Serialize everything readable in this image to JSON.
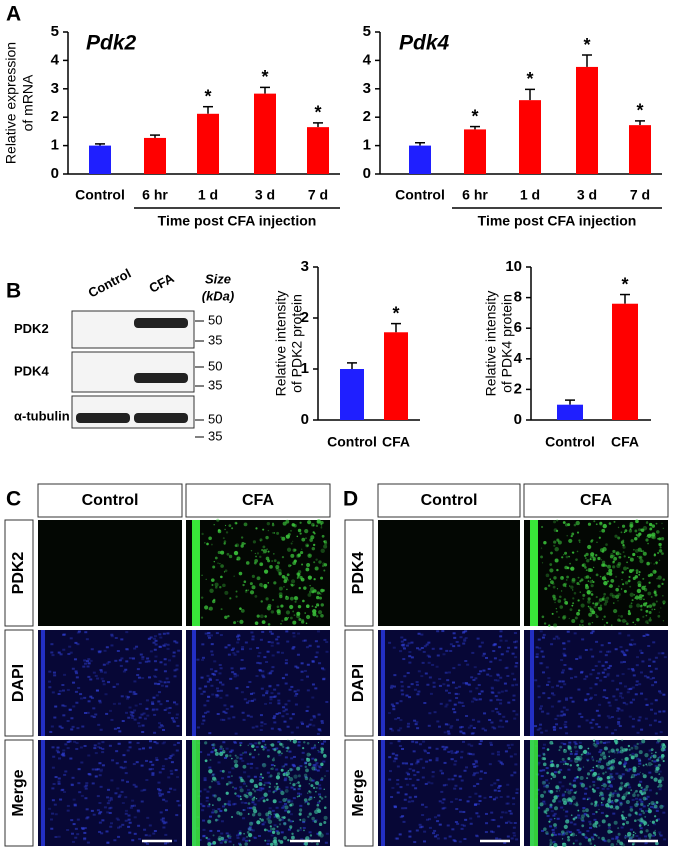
{
  "panel_labels": [
    "A",
    "B",
    "C",
    "D"
  ],
  "chart_data": [
    {
      "type": "bar",
      "title": "Pdk2",
      "ylabel": [
        "Relative expression",
        "of mRNA"
      ],
      "categories": [
        "Control",
        "6 hr",
        "1 d",
        "3 d",
        "7 d"
      ],
      "group_label": "Time post CFA injection",
      "values": [
        1.0,
        1.27,
        2.12,
        2.83,
        1.65
      ],
      "errors": [
        0.06,
        0.1,
        0.25,
        0.22,
        0.15
      ],
      "colors": [
        "#1f1fff",
        "#ff0000",
        "#ff0000",
        "#ff0000",
        "#ff0000"
      ],
      "significance": [
        null,
        null,
        "*",
        "*",
        "*"
      ],
      "ylim": [
        0,
        5
      ],
      "yticks": [
        0,
        1,
        2,
        3,
        4,
        5
      ]
    },
    {
      "type": "bar",
      "title": "Pdk4",
      "categories": [
        "Control",
        "6 hr",
        "1 d",
        "3 d",
        "7 d"
      ],
      "group_label": "Time post CFA injection",
      "values": [
        1.0,
        1.57,
        2.6,
        3.77,
        1.72
      ],
      "errors": [
        0.1,
        0.1,
        0.38,
        0.42,
        0.15
      ],
      "colors": [
        "#1f1fff",
        "#ff0000",
        "#ff0000",
        "#ff0000",
        "#ff0000"
      ],
      "significance": [
        null,
        "*",
        "*",
        "*",
        "*"
      ],
      "ylim": [
        0,
        5
      ],
      "yticks": [
        0,
        1,
        2,
        3,
        4,
        5
      ]
    },
    {
      "type": "bar",
      "ylabel": [
        "Relative intensity",
        "of PDK2 protein"
      ],
      "categories": [
        "Control",
        "CFA"
      ],
      "values": [
        1.0,
        1.72
      ],
      "errors": [
        0.12,
        0.17
      ],
      "colors": [
        "#1f1fff",
        "#ff0000"
      ],
      "significance": [
        null,
        "*"
      ],
      "ylim": [
        0,
        3
      ],
      "yticks": [
        0,
        1,
        2,
        3
      ]
    },
    {
      "type": "bar",
      "ylabel": [
        "Relative intensity",
        "of PDK4 protein"
      ],
      "categories": [
        "Control",
        "CFA"
      ],
      "values": [
        1.0,
        7.6
      ],
      "errors": [
        0.3,
        0.6
      ],
      "colors": [
        "#1f1fff",
        "#ff0000"
      ],
      "significance": [
        null,
        "*"
      ],
      "ylim": [
        0,
        10
      ],
      "yticks": [
        0,
        2,
        4,
        6,
        8,
        10
      ]
    }
  ],
  "blot": {
    "lanes": [
      "Control",
      "CFA"
    ],
    "size_label": [
      "Size",
      "(kDa)"
    ],
    "rows": [
      {
        "label": "PDK2",
        "markers": [
          50,
          35
        ]
      },
      {
        "label": "PDK4",
        "markers": [
          50,
          35
        ]
      },
      {
        "label": "α-tubulin",
        "markers": [
          50,
          35
        ]
      }
    ]
  },
  "micrographs": [
    {
      "columns": [
        "Control",
        "CFA"
      ],
      "rows": [
        "PDK2",
        "DAPI",
        "Merge"
      ]
    },
    {
      "columns": [
        "Control",
        "CFA"
      ],
      "rows": [
        "PDK4",
        "DAPI",
        "Merge"
      ]
    }
  ]
}
